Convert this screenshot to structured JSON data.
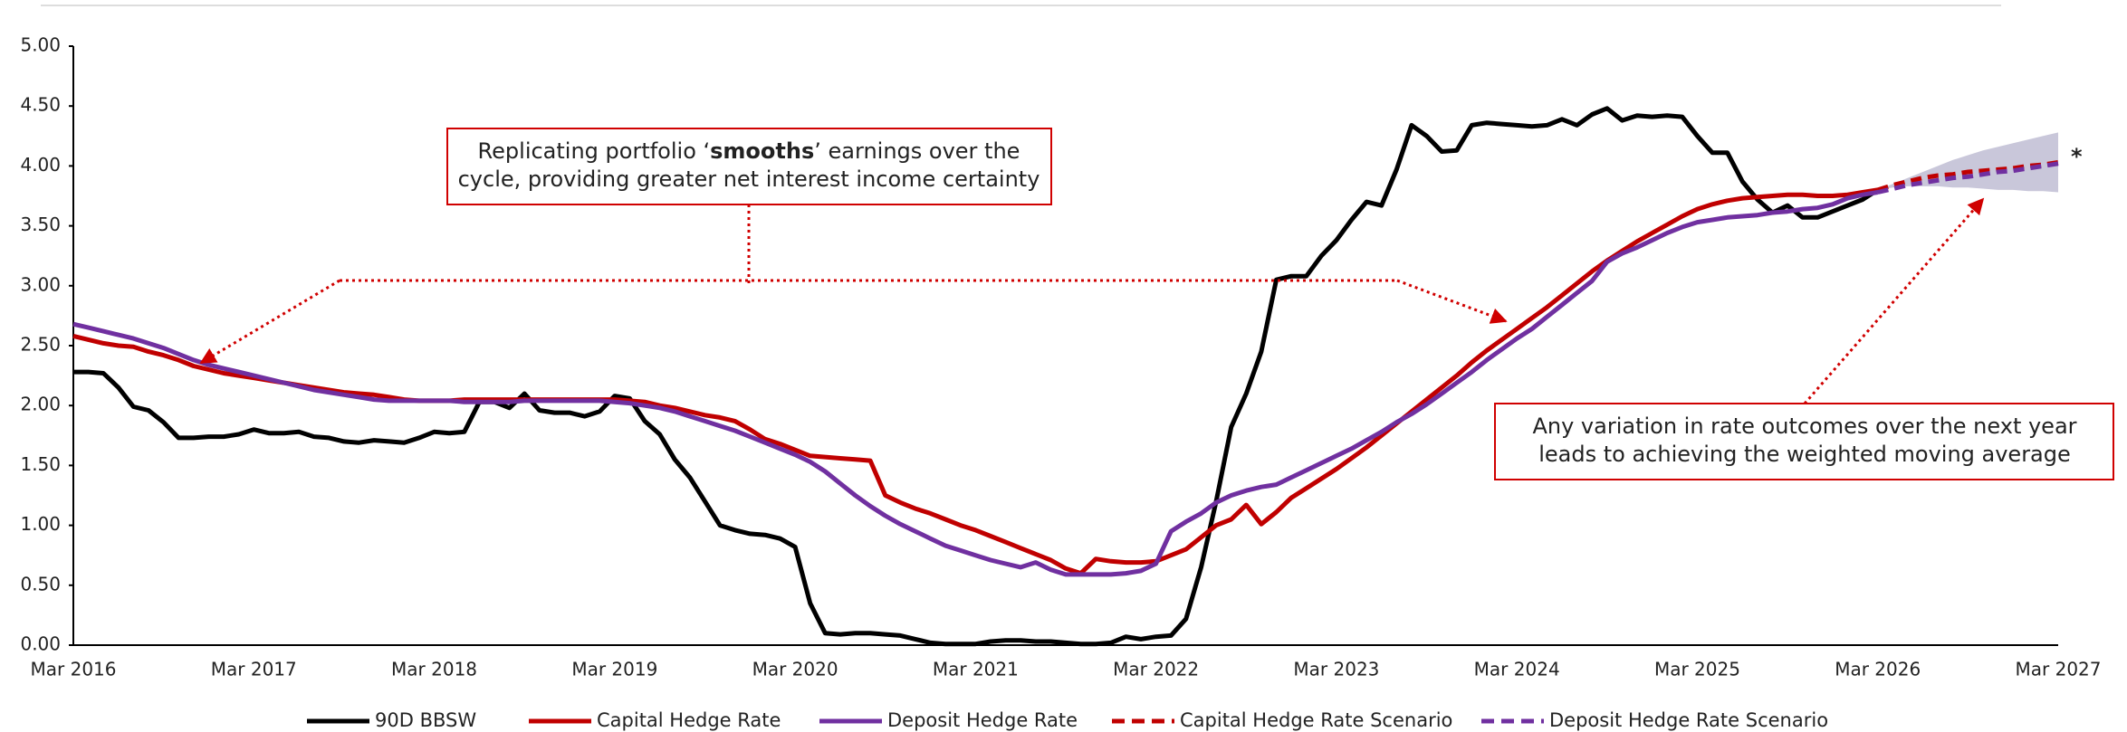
{
  "chart_data": {
    "type": "line",
    "x": [
      "Mar 2016",
      "Apr 2016",
      "May 2016",
      "Jun 2016",
      "Jul 2016",
      "Aug 2016",
      "Sep 2016",
      "Oct 2016",
      "Nov 2016",
      "Dec 2016",
      "Jan 2017",
      "Feb 2017",
      "Mar 2017",
      "Apr 2017",
      "May 2017",
      "Jun 2017",
      "Jul 2017",
      "Aug 2017",
      "Sep 2017",
      "Oct 2017",
      "Nov 2017",
      "Dec 2017",
      "Jan 2018",
      "Feb 2018",
      "Mar 2018",
      "Apr 2018",
      "May 2018",
      "Jun 2018",
      "Jul 2018",
      "Aug 2018",
      "Sep 2018",
      "Oct 2018",
      "Nov 2018",
      "Dec 2018",
      "Jan 2019",
      "Feb 2019",
      "Mar 2019",
      "Apr 2019",
      "May 2019",
      "Jun 2019",
      "Jul 2019",
      "Aug 2019",
      "Sep 2019",
      "Oct 2019",
      "Nov 2019",
      "Dec 2019",
      "Jan 2020",
      "Feb 2020",
      "Mar 2020",
      "Apr 2020",
      "May 2020",
      "Jun 2020",
      "Jul 2020",
      "Aug 2020",
      "Sep 2020",
      "Oct 2020",
      "Nov 2020",
      "Dec 2020",
      "Jan 2021",
      "Feb 2021",
      "Mar 2021",
      "Apr 2021",
      "May 2021",
      "Jun 2021",
      "Jul 2021",
      "Aug 2021",
      "Sep 2021",
      "Oct 2021",
      "Nov 2021",
      "Dec 2021",
      "Jan 2022",
      "Feb 2022",
      "Mar 2022",
      "Apr 2022",
      "May 2022",
      "Jun 2022",
      "Jul 2022",
      "Aug 2022",
      "Sep 2022",
      "Oct 2022",
      "Nov 2022",
      "Dec 2022",
      "Jan 2023",
      "Feb 2023",
      "Mar 2023",
      "Apr 2023",
      "May 2023",
      "Jun 2023",
      "Jul 2023",
      "Aug 2023",
      "Sep 2023",
      "Oct 2023",
      "Nov 2023",
      "Dec 2023",
      "Jan 2024",
      "Feb 2024",
      "Mar 2024",
      "Apr 2024",
      "May 2024",
      "Jun 2024",
      "Jul 2024",
      "Aug 2024",
      "Sep 2024",
      "Oct 2024",
      "Nov 2024",
      "Dec 2024",
      "Jan 2025",
      "Feb 2025",
      "Mar 2025",
      "Apr 2025",
      "May 2025",
      "Jun 2025",
      "Jul 2025",
      "Aug 2025",
      "Sep 2025",
      "Oct 2025",
      "Nov 2025",
      "Dec 2025",
      "Jan 2026",
      "Feb 2026",
      "Mar 2026",
      "Apr 2026",
      "May 2026",
      "Jun 2026",
      "Jul 2026",
      "Aug 2026",
      "Sep 2026",
      "Oct 2026",
      "Nov 2026",
      "Dec 2026",
      "Jan 2027",
      "Feb 2027",
      "Mar 2027"
    ],
    "xticks": [
      "Mar 2016",
      "Mar 2017",
      "Mar 2018",
      "Mar 2019",
      "Mar 2020",
      "Mar 2021",
      "Mar 2022",
      "Mar 2023",
      "Mar 2024",
      "Mar 2025",
      "Mar 2026",
      "Mar 2027"
    ],
    "ylim": [
      0,
      5
    ],
    "yticks": [
      {
        "value": 0,
        "label": "0.00"
      },
      {
        "value": 0.5,
        "label": "0.50"
      },
      {
        "value": 1,
        "label": "1.00"
      },
      {
        "value": 1.5,
        "label": "1.50"
      },
      {
        "value": 2,
        "label": "2.00"
      },
      {
        "value": 2.5,
        "label": "2.50"
      },
      {
        "value": 3,
        "label": "3.00"
      },
      {
        "value": 3.5,
        "label": "3.50"
      },
      {
        "value": 4,
        "label": "4.00"
      },
      {
        "value": 4.5,
        "label": "4.50"
      },
      {
        "value": 5,
        "label": "5.00"
      }
    ],
    "grid": false,
    "series": [
      {
        "name": "90D BBSW",
        "color": "#000000",
        "dash": false,
        "values": [
          2.28,
          2.28,
          2.27,
          2.15,
          1.99,
          1.96,
          1.86,
          1.73,
          1.73,
          1.74,
          1.74,
          1.76,
          1.8,
          1.77,
          1.77,
          1.78,
          1.74,
          1.73,
          1.7,
          1.69,
          1.71,
          1.7,
          1.69,
          1.73,
          1.78,
          1.77,
          1.78,
          2.03,
          2.03,
          1.98,
          2.1,
          1.96,
          1.94,
          1.94,
          1.91,
          1.95,
          2.08,
          2.06,
          1.87,
          1.76,
          1.55,
          1.4,
          1.2,
          1.0,
          0.96,
          0.93,
          0.92,
          0.89,
          0.82,
          0.35,
          0.1,
          0.09,
          0.1,
          0.1,
          0.09,
          0.08,
          0.05,
          0.02,
          0.01,
          0.01,
          0.01,
          0.03,
          0.04,
          0.04,
          0.03,
          0.03,
          0.02,
          0.01,
          0.01,
          0.02,
          0.07,
          0.05,
          0.07,
          0.08,
          0.22,
          0.65,
          1.2,
          1.82,
          2.1,
          2.45,
          3.05,
          3.08,
          3.08,
          3.25,
          3.38,
          3.55,
          3.7,
          3.67,
          3.97,
          4.34,
          4.25,
          4.12,
          4.13,
          4.34,
          4.36,
          4.35,
          4.34,
          4.33,
          4.34,
          4.39,
          4.34,
          4.43,
          4.48,
          4.38,
          4.42,
          4.41,
          4.42,
          4.41,
          4.25,
          4.11,
          4.11,
          3.87,
          3.72,
          3.61,
          3.67,
          3.57,
          3.57,
          3.62,
          3.67,
          3.72,
          3.8,
          null,
          null,
          null,
          null,
          null,
          null,
          null,
          null,
          null,
          null,
          null,
          null
        ]
      },
      {
        "name": "Capital Hedge Rate",
        "color": "#c00000",
        "dash": false,
        "values": [
          2.58,
          2.55,
          2.52,
          2.5,
          2.49,
          2.45,
          2.42,
          2.38,
          2.33,
          2.3,
          2.27,
          2.25,
          2.23,
          2.21,
          2.19,
          2.17,
          2.15,
          2.13,
          2.11,
          2.1,
          2.09,
          2.07,
          2.05,
          2.04,
          2.04,
          2.04,
          2.05,
          2.05,
          2.05,
          2.05,
          2.05,
          2.05,
          2.05,
          2.05,
          2.05,
          2.05,
          2.05,
          2.04,
          2.03,
          2.0,
          1.98,
          1.95,
          1.92,
          1.9,
          1.87,
          1.8,
          1.72,
          1.68,
          1.63,
          1.58,
          1.57,
          1.56,
          1.55,
          1.54,
          1.25,
          1.19,
          1.14,
          1.1,
          1.05,
          1.0,
          0.96,
          0.91,
          0.86,
          0.81,
          0.76,
          0.71,
          0.64,
          0.6,
          0.72,
          0.7,
          0.69,
          0.69,
          0.7,
          0.75,
          0.8,
          0.9,
          1.0,
          1.05,
          1.17,
          1.01,
          1.11,
          1.23,
          1.31,
          1.39,
          1.47,
          1.56,
          1.65,
          1.75,
          1.85,
          1.95,
          2.05,
          2.15,
          2.25,
          2.36,
          2.46,
          2.55,
          2.64,
          2.73,
          2.82,
          2.92,
          3.02,
          3.12,
          3.21,
          3.29,
          3.37,
          3.44,
          3.51,
          3.58,
          3.64,
          3.68,
          3.71,
          3.73,
          3.74,
          3.75,
          3.76,
          3.76,
          3.75,
          3.75,
          3.76,
          3.78,
          3.8,
          null,
          null,
          null,
          null,
          null,
          null,
          null,
          null,
          null,
          null,
          null,
          null
        ]
      },
      {
        "name": "Deposit Hedge Rate",
        "color": "#7030a0",
        "dash": false,
        "values": [
          2.68,
          2.65,
          2.62,
          2.59,
          2.56,
          2.52,
          2.48,
          2.43,
          2.38,
          2.34,
          2.31,
          2.28,
          2.25,
          2.22,
          2.19,
          2.16,
          2.13,
          2.11,
          2.09,
          2.07,
          2.05,
          2.04,
          2.04,
          2.04,
          2.04,
          2.04,
          2.03,
          2.03,
          2.03,
          2.03,
          2.04,
          2.04,
          2.04,
          2.04,
          2.04,
          2.04,
          2.03,
          2.02,
          2.0,
          1.98,
          1.95,
          1.91,
          1.87,
          1.83,
          1.79,
          1.74,
          1.69,
          1.64,
          1.59,
          1.53,
          1.45,
          1.35,
          1.25,
          1.16,
          1.08,
          1.01,
          0.95,
          0.89,
          0.83,
          0.79,
          0.75,
          0.71,
          0.68,
          0.65,
          0.69,
          0.63,
          0.59,
          0.59,
          0.59,
          0.59,
          0.6,
          0.62,
          0.68,
          0.95,
          1.03,
          1.1,
          1.19,
          1.25,
          1.29,
          1.32,
          1.34,
          1.4,
          1.46,
          1.52,
          1.58,
          1.64,
          1.71,
          1.78,
          1.86,
          1.93,
          2.01,
          2.1,
          2.19,
          2.28,
          2.38,
          2.47,
          2.56,
          2.64,
          2.74,
          2.84,
          2.94,
          3.04,
          3.2,
          3.27,
          3.32,
          3.38,
          3.44,
          3.49,
          3.53,
          3.55,
          3.57,
          3.58,
          3.59,
          3.61,
          3.62,
          3.64,
          3.65,
          3.68,
          3.73,
          3.76,
          3.78,
          null,
          null,
          null,
          null,
          null,
          null,
          null,
          null,
          null,
          null,
          null,
          null
        ]
      },
      {
        "name": "Capital Hedge Rate Scenario",
        "color": "#c00000",
        "dash": true,
        "values": [
          null,
          null,
          null,
          null,
          null,
          null,
          null,
          null,
          null,
          null,
          null,
          null,
          null,
          null,
          null,
          null,
          null,
          null,
          null,
          null,
          null,
          null,
          null,
          null,
          null,
          null,
          null,
          null,
          null,
          null,
          null,
          null,
          null,
          null,
          null,
          null,
          null,
          null,
          null,
          null,
          null,
          null,
          null,
          null,
          null,
          null,
          null,
          null,
          null,
          null,
          null,
          null,
          null,
          null,
          null,
          null,
          null,
          null,
          null,
          null,
          null,
          null,
          null,
          null,
          null,
          null,
          null,
          null,
          null,
          null,
          null,
          null,
          null,
          null,
          null,
          null,
          null,
          null,
          null,
          null,
          null,
          null,
          null,
          null,
          null,
          null,
          null,
          null,
          null,
          null,
          null,
          null,
          null,
          null,
          null,
          null,
          null,
          null,
          null,
          null,
          null,
          null,
          null,
          null,
          null,
          null,
          null,
          null,
          null,
          null,
          null,
          null,
          null,
          null,
          null,
          null,
          null,
          null,
          null,
          null,
          3.8,
          3.84,
          3.87,
          3.9,
          3.92,
          3.93,
          3.95,
          3.96,
          3.97,
          3.98,
          4.0,
          4.01,
          4.03
        ]
      },
      {
        "name": "Deposit Hedge Rate Scenario",
        "color": "#7030a0",
        "dash": true,
        "values": [
          null,
          null,
          null,
          null,
          null,
          null,
          null,
          null,
          null,
          null,
          null,
          null,
          null,
          null,
          null,
          null,
          null,
          null,
          null,
          null,
          null,
          null,
          null,
          null,
          null,
          null,
          null,
          null,
          null,
          null,
          null,
          null,
          null,
          null,
          null,
          null,
          null,
          null,
          null,
          null,
          null,
          null,
          null,
          null,
          null,
          null,
          null,
          null,
          null,
          null,
          null,
          null,
          null,
          null,
          null,
          null,
          null,
          null,
          null,
          null,
          null,
          null,
          null,
          null,
          null,
          null,
          null,
          null,
          null,
          null,
          null,
          null,
          null,
          null,
          null,
          null,
          null,
          null,
          null,
          null,
          null,
          null,
          null,
          null,
          null,
          null,
          null,
          null,
          null,
          null,
          null,
          null,
          null,
          null,
          null,
          null,
          null,
          null,
          null,
          null,
          null,
          null,
          null,
          null,
          null,
          null,
          null,
          null,
          null,
          null,
          null,
          null,
          null,
          null,
          null,
          null,
          null,
          null,
          null,
          null,
          3.78,
          3.81,
          3.84,
          3.86,
          3.88,
          3.9,
          3.91,
          3.93,
          3.95,
          3.96,
          3.98,
          4.0,
          4.02
        ]
      }
    ],
    "band": {
      "color": "#c9c7da",
      "lower": [
        null,
        null,
        null,
        null,
        null,
        null,
        null,
        null,
        null,
        null,
        null,
        null,
        null,
        null,
        null,
        null,
        null,
        null,
        null,
        null,
        null,
        null,
        null,
        null,
        null,
        null,
        null,
        null,
        null,
        null,
        null,
        null,
        null,
        null,
        null,
        null,
        null,
        null,
        null,
        null,
        null,
        null,
        null,
        null,
        null,
        null,
        null,
        null,
        null,
        null,
        null,
        null,
        null,
        null,
        null,
        null,
        null,
        null,
        null,
        null,
        null,
        null,
        null,
        null,
        null,
        null,
        null,
        null,
        null,
        null,
        null,
        null,
        null,
        null,
        null,
        null,
        null,
        null,
        null,
        null,
        null,
        null,
        null,
        null,
        null,
        null,
        null,
        null,
        null,
        null,
        null,
        null,
        null,
        null,
        null,
        null,
        null,
        null,
        null,
        null,
        null,
        null,
        null,
        null,
        null,
        null,
        null,
        null,
        null,
        null,
        null,
        null,
        null,
        null,
        null,
        null,
        null,
        null,
        null,
        null,
        3.8,
        3.82,
        3.83,
        3.83,
        3.83,
        3.82,
        3.82,
        3.81,
        3.8,
        3.8,
        3.79,
        3.79,
        3.78
      ],
      "upper": [
        null,
        null,
        null,
        null,
        null,
        null,
        null,
        null,
        null,
        null,
        null,
        null,
        null,
        null,
        null,
        null,
        null,
        null,
        null,
        null,
        null,
        null,
        null,
        null,
        null,
        null,
        null,
        null,
        null,
        null,
        null,
        null,
        null,
        null,
        null,
        null,
        null,
        null,
        null,
        null,
        null,
        null,
        null,
        null,
        null,
        null,
        null,
        null,
        null,
        null,
        null,
        null,
        null,
        null,
        null,
        null,
        null,
        null,
        null,
        null,
        null,
        null,
        null,
        null,
        null,
        null,
        null,
        null,
        null,
        null,
        null,
        null,
        null,
        null,
        null,
        null,
        null,
        null,
        null,
        null,
        null,
        null,
        null,
        null,
        null,
        null,
        null,
        null,
        null,
        null,
        null,
        null,
        null,
        null,
        null,
        null,
        null,
        null,
        null,
        null,
        null,
        null,
        null,
        null,
        null,
        null,
        null,
        null,
        null,
        null,
        null,
        null,
        null,
        null,
        null,
        null,
        null,
        null,
        null,
        null,
        3.8,
        3.85,
        3.9,
        3.95,
        4.0,
        4.05,
        4.09,
        4.13,
        4.16,
        4.19,
        4.22,
        4.25,
        4.28
      ]
    },
    "note": "*",
    "annotations": [
      {
        "lines": [
          [
            "Replicating portfolio ‘",
            "smooths",
            "’ earnings over the"
          ],
          [
            "cycle, providing greater net interest income certainty"
          ]
        ]
      },
      {
        "lines": [
          [
            "Any variation in rate outcomes over the next year"
          ],
          [
            "leads to achieving the weighted moving average"
          ]
        ]
      }
    ]
  }
}
